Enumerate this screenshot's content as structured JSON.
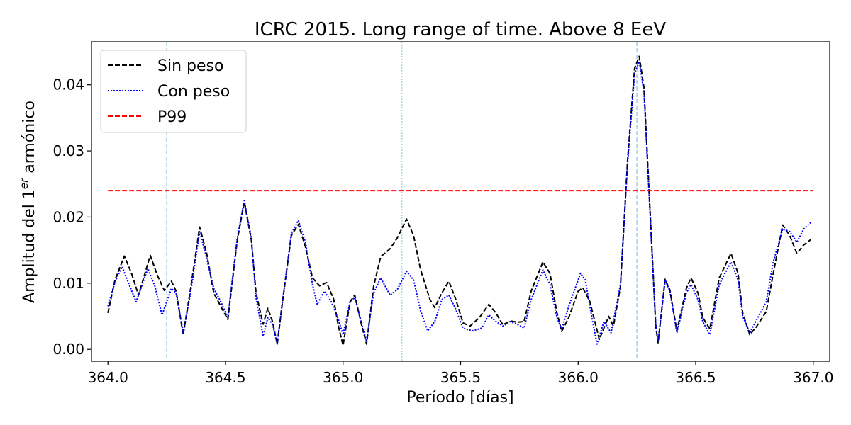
{
  "chart_data": {
    "type": "line",
    "title": "ICRC 2015. Long range of time. Above 8 EeV",
    "xlabel": "Período [días]",
    "ylabel_main": "Amplitud del 1",
    "ylabel_sup": "er",
    "ylabel_tail": " armónico",
    "xlim": [
      363.93,
      367.07
    ],
    "ylim": [
      -0.0018,
      0.0465
    ],
    "x_ticks": [
      364.0,
      364.5,
      365.0,
      365.5,
      366.0,
      366.5,
      367.0
    ],
    "x_tick_labels": [
      "364.0",
      "364.5",
      "365.0",
      "365.5",
      "366.0",
      "366.5",
      "367.0"
    ],
    "y_ticks": [
      0.0,
      0.01,
      0.02,
      0.03,
      0.04
    ],
    "y_tick_labels": [
      "0.00",
      "0.01",
      "0.02",
      "0.03",
      "0.04"
    ],
    "legend_position": "top-left",
    "vertical_lines": [
      {
        "x": 364.25,
        "style": "dashed",
        "color": "#add8e6"
      },
      {
        "x": 365.25,
        "style": "dotted",
        "color": "#add8e6"
      },
      {
        "x": 366.25,
        "style": "dashed",
        "color": "#add8e6"
      }
    ],
    "series": [
      {
        "name": "Sin peso",
        "color": "#000000",
        "style": "dashed",
        "points": [
          [
            364.0,
            0.0055
          ],
          [
            364.03,
            0.0105
          ],
          [
            364.07,
            0.0141
          ],
          [
            364.1,
            0.0115
          ],
          [
            364.13,
            0.0082
          ],
          [
            364.18,
            0.0142
          ],
          [
            364.21,
            0.0112
          ],
          [
            364.24,
            0.0089
          ],
          [
            364.27,
            0.0103
          ],
          [
            364.29,
            0.0088
          ],
          [
            364.32,
            0.0022
          ],
          [
            364.35,
            0.0088
          ],
          [
            364.39,
            0.0185
          ],
          [
            364.42,
            0.0145
          ],
          [
            364.45,
            0.0085
          ],
          [
            364.48,
            0.0065
          ],
          [
            364.51,
            0.0045
          ],
          [
            364.55,
            0.0165
          ],
          [
            364.58,
            0.0223
          ],
          [
            364.61,
            0.0165
          ],
          [
            364.63,
            0.0085
          ],
          [
            364.66,
            0.0038
          ],
          [
            364.68,
            0.0062
          ],
          [
            364.7,
            0.0042
          ],
          [
            364.72,
            0.0008
          ],
          [
            364.74,
            0.0065
          ],
          [
            364.78,
            0.0172
          ],
          [
            364.81,
            0.0189
          ],
          [
            364.84,
            0.0155
          ],
          [
            364.87,
            0.0108
          ],
          [
            364.9,
            0.0096
          ],
          [
            364.93,
            0.0101
          ],
          [
            364.96,
            0.0076
          ],
          [
            364.98,
            0.0035
          ],
          [
            365.0,
            0.0006
          ],
          [
            365.03,
            0.0072
          ],
          [
            365.05,
            0.0082
          ],
          [
            365.08,
            0.0035
          ],
          [
            365.1,
            0.0008
          ],
          [
            365.13,
            0.0095
          ],
          [
            365.16,
            0.014
          ],
          [
            365.2,
            0.0152
          ],
          [
            365.23,
            0.0168
          ],
          [
            365.27,
            0.0197
          ],
          [
            365.3,
            0.0172
          ],
          [
            365.33,
            0.012
          ],
          [
            365.37,
            0.0075
          ],
          [
            365.39,
            0.0063
          ],
          [
            365.42,
            0.0085
          ],
          [
            365.45,
            0.0103
          ],
          [
            365.48,
            0.0075
          ],
          [
            365.51,
            0.004
          ],
          [
            365.54,
            0.0035
          ],
          [
            365.58,
            0.0048
          ],
          [
            365.62,
            0.0068
          ],
          [
            365.65,
            0.0055
          ],
          [
            365.68,
            0.0037
          ],
          [
            365.71,
            0.0043
          ],
          [
            365.74,
            0.0041
          ],
          [
            365.77,
            0.0042
          ],
          [
            365.8,
            0.0088
          ],
          [
            365.85,
            0.0132
          ],
          [
            365.88,
            0.0115
          ],
          [
            365.91,
            0.0055
          ],
          [
            365.93,
            0.0027
          ],
          [
            365.96,
            0.0048
          ],
          [
            366.0,
            0.0088
          ],
          [
            366.02,
            0.0093
          ],
          [
            366.05,
            0.0072
          ],
          [
            366.09,
            0.0015
          ],
          [
            366.13,
            0.005
          ],
          [
            366.15,
            0.0035
          ],
          [
            366.18,
            0.0095
          ],
          [
            366.21,
            0.0285
          ],
          [
            366.24,
            0.0425
          ],
          [
            366.26,
            0.0443
          ],
          [
            366.28,
            0.0395
          ],
          [
            366.31,
            0.018
          ],
          [
            366.33,
            0.0035
          ],
          [
            366.34,
            0.001
          ],
          [
            366.37,
            0.0106
          ],
          [
            366.39,
            0.009
          ],
          [
            366.42,
            0.0028
          ],
          [
            366.46,
            0.0092
          ],
          [
            366.48,
            0.0108
          ],
          [
            366.51,
            0.0085
          ],
          [
            366.53,
            0.0048
          ],
          [
            366.56,
            0.0031
          ],
          [
            366.6,
            0.0108
          ],
          [
            366.65,
            0.0145
          ],
          [
            366.68,
            0.0115
          ],
          [
            366.7,
            0.0055
          ],
          [
            366.73,
            0.0022
          ],
          [
            366.76,
            0.0035
          ],
          [
            366.8,
            0.0057
          ],
          [
            366.83,
            0.0115
          ],
          [
            366.87,
            0.0188
          ],
          [
            366.9,
            0.0172
          ],
          [
            366.93,
            0.0145
          ],
          [
            366.96,
            0.0158
          ],
          [
            366.99,
            0.0166
          ]
        ]
      },
      {
        "name": "Con peso",
        "color": "#0000ff",
        "style": "dotted",
        "points": [
          [
            364.0,
            0.0065
          ],
          [
            364.03,
            0.0102
          ],
          [
            364.06,
            0.0125
          ],
          [
            364.09,
            0.0098
          ],
          [
            364.12,
            0.0072
          ],
          [
            364.17,
            0.0122
          ],
          [
            364.2,
            0.0095
          ],
          [
            364.23,
            0.0052
          ],
          [
            364.27,
            0.0092
          ],
          [
            364.29,
            0.0085
          ],
          [
            364.32,
            0.0025
          ],
          [
            364.35,
            0.0082
          ],
          [
            364.39,
            0.0178
          ],
          [
            364.42,
            0.0138
          ],
          [
            364.45,
            0.0092
          ],
          [
            364.48,
            0.0072
          ],
          [
            364.51,
            0.0048
          ],
          [
            364.55,
            0.0168
          ],
          [
            364.58,
            0.0225
          ],
          [
            364.61,
            0.0168
          ],
          [
            364.63,
            0.0078
          ],
          [
            364.66,
            0.002
          ],
          [
            364.68,
            0.0048
          ],
          [
            364.7,
            0.0038
          ],
          [
            364.72,
            0.0008
          ],
          [
            364.74,
            0.0065
          ],
          [
            364.78,
            0.0175
          ],
          [
            364.81,
            0.0195
          ],
          [
            364.84,
            0.0162
          ],
          [
            364.87,
            0.0098
          ],
          [
            364.89,
            0.0068
          ],
          [
            364.92,
            0.0088
          ],
          [
            364.95,
            0.0072
          ],
          [
            364.98,
            0.0045
          ],
          [
            365.0,
            0.0022
          ],
          [
            365.03,
            0.0072
          ],
          [
            365.05,
            0.0078
          ],
          [
            365.08,
            0.0038
          ],
          [
            365.1,
            0.0012
          ],
          [
            365.13,
            0.0085
          ],
          [
            365.16,
            0.0108
          ],
          [
            365.2,
            0.0082
          ],
          [
            365.23,
            0.009
          ],
          [
            365.27,
            0.0118
          ],
          [
            365.3,
            0.0105
          ],
          [
            365.33,
            0.0058
          ],
          [
            365.36,
            0.0028
          ],
          [
            365.39,
            0.0042
          ],
          [
            365.42,
            0.0075
          ],
          [
            365.45,
            0.0082
          ],
          [
            365.48,
            0.006
          ],
          [
            365.51,
            0.0032
          ],
          [
            365.55,
            0.0028
          ],
          [
            365.59,
            0.0032
          ],
          [
            365.62,
            0.0052
          ],
          [
            365.65,
            0.0042
          ],
          [
            365.68,
            0.0035
          ],
          [
            365.71,
            0.0042
          ],
          [
            365.74,
            0.0038
          ],
          [
            365.77,
            0.0032
          ],
          [
            365.8,
            0.0075
          ],
          [
            365.85,
            0.012
          ],
          [
            365.88,
            0.0098
          ],
          [
            365.91,
            0.0048
          ],
          [
            365.93,
            0.003
          ],
          [
            365.96,
            0.0065
          ],
          [
            366.01,
            0.0115
          ],
          [
            366.03,
            0.0105
          ],
          [
            366.06,
            0.0045
          ],
          [
            366.08,
            0.0008
          ],
          [
            366.11,
            0.0042
          ],
          [
            366.14,
            0.0025
          ],
          [
            366.18,
            0.0098
          ],
          [
            366.21,
            0.028
          ],
          [
            366.24,
            0.0418
          ],
          [
            366.26,
            0.0435
          ],
          [
            366.28,
            0.0388
          ],
          [
            366.31,
            0.0175
          ],
          [
            366.33,
            0.0038
          ],
          [
            366.34,
            0.0012
          ],
          [
            366.37,
            0.0105
          ],
          [
            366.39,
            0.0088
          ],
          [
            366.42,
            0.0025
          ],
          [
            366.46,
            0.0085
          ],
          [
            366.48,
            0.0098
          ],
          [
            366.51,
            0.0075
          ],
          [
            366.53,
            0.0042
          ],
          [
            366.56,
            0.0022
          ],
          [
            366.6,
            0.0098
          ],
          [
            366.65,
            0.0132
          ],
          [
            366.68,
            0.0105
          ],
          [
            366.7,
            0.005
          ],
          [
            366.73,
            0.0025
          ],
          [
            366.76,
            0.0045
          ],
          [
            366.8,
            0.0072
          ],
          [
            366.83,
            0.0132
          ],
          [
            366.87,
            0.0182
          ],
          [
            366.9,
            0.0178
          ],
          [
            366.93,
            0.0162
          ],
          [
            366.96,
            0.0182
          ],
          [
            366.99,
            0.0192
          ]
        ]
      },
      {
        "name": "P99",
        "color": "#ff0000",
        "style": "dashed",
        "points": [
          [
            364.0,
            0.024
          ],
          [
            367.0,
            0.024
          ]
        ]
      }
    ]
  }
}
